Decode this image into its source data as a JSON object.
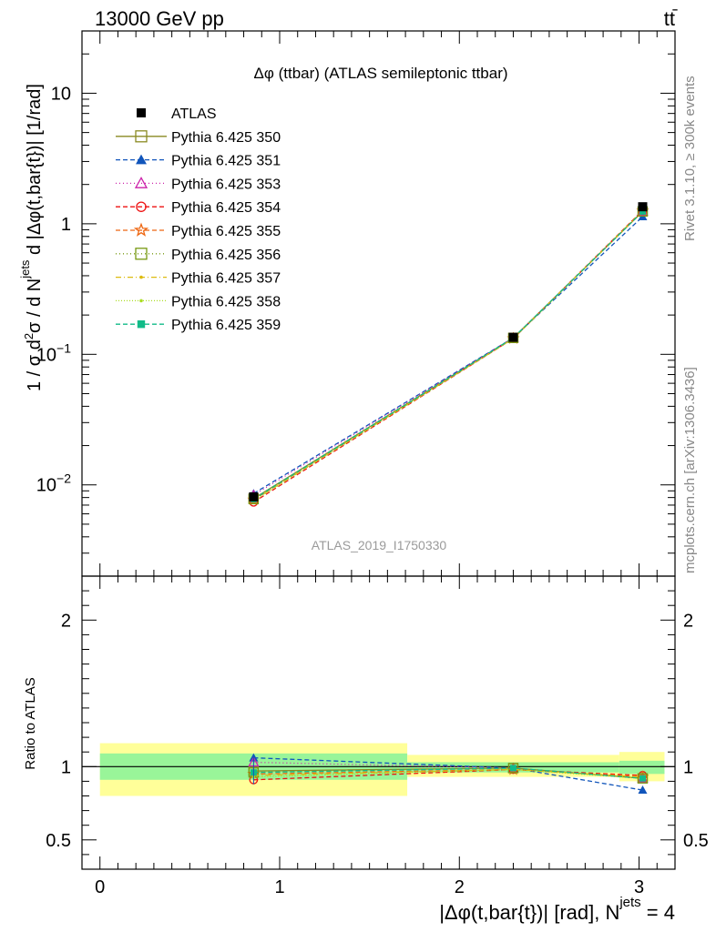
{
  "header": {
    "left": "13000 GeV pp",
    "right_main": "tt",
    "right_bar": "̄"
  },
  "side": {
    "rivet": "Rivet 3.1.10, ≥ 300k events",
    "mcplots": "mcplots.cern.ch [arXiv:1306.3436]"
  },
  "chart_data": {
    "type": "line",
    "title": "Δφ (ttbar) (ATLAS semileptonic ttbar)",
    "watermark": "ATLAS_2019_I1750330",
    "ylabel": {
      "a": "1 / σ d",
      "a_sup": "2",
      "b": "σ / d N",
      "b_sup": "jets",
      "c": " d |Δφ(t,bar{t})| [1/rad]"
    },
    "xlabel": {
      "main": "|Δφ(t,bar{t})| [rad], N",
      "sup": "jets",
      "tail": " = 4"
    },
    "ratio_ylabel": "Ratio to ATLAS",
    "xlim": [
      -0.1,
      3.2
    ],
    "ylim_log": [
      0.002,
      30
    ],
    "ratio_ylim": [
      0.3,
      2.3
    ],
    "log_y": true,
    "x_ticks": [
      0,
      1,
      2,
      3
    ],
    "x_tick_labels": [
      "0",
      "1",
      "2",
      "3"
    ],
    "y_ticks": [
      0.01,
      0.1,
      1,
      10
    ],
    "y_tick_labels": [
      {
        "base": "10",
        "exp": "−2"
      },
      {
        "base": "10",
        "exp": "−1"
      },
      {
        "base": "1",
        "exp": ""
      },
      {
        "base": "10",
        "exp": ""
      }
    ],
    "ratio_ticks": [
      0.5,
      1,
      2
    ],
    "ratio_tick_labels": [
      "0.5",
      "1",
      "2"
    ],
    "bins": [
      {
        "lo": 0.0,
        "hi": 1.71,
        "center": 0.855
      },
      {
        "lo": 1.71,
        "hi": 2.89,
        "center": 2.3
      },
      {
        "lo": 2.89,
        "hi": 3.1416,
        "center": 3.02
      }
    ],
    "data": {
      "name": "ATLAS",
      "values": [
        0.0081,
        0.135,
        1.35
      ],
      "band_inner": [
        [
          0.91,
          1.09
        ],
        [
          0.96,
          1.03
        ],
        [
          0.95,
          1.04
        ]
      ],
      "band_outer": [
        [
          0.8,
          1.16
        ],
        [
          0.93,
          1.08
        ],
        [
          0.9,
          1.1
        ]
      ]
    },
    "series": [
      {
        "name": "Pythia 6.425 350",
        "color": "#8a8a22",
        "dash": "",
        "marker": "square-open",
        "ratio": [
          0.97,
          0.99,
          0.92
        ]
      },
      {
        "name": "Pythia 6.425 351",
        "color": "#1155bb",
        "dash": "5,3",
        "marker": "triangle-filled",
        "ratio": [
          1.06,
          0.99,
          0.84
        ]
      },
      {
        "name": "Pythia 6.425 353",
        "color": "#cc22aa",
        "dash": "1,3",
        "marker": "triangle-open",
        "ratio": [
          1.03,
          0.99,
          0.92
        ]
      },
      {
        "name": "Pythia 6.425 354",
        "color": "#ee1111",
        "dash": "5,3",
        "marker": "circle-open",
        "ratio": [
          0.91,
          0.98,
          0.94
        ]
      },
      {
        "name": "Pythia 6.425 355",
        "color": "#ee6611",
        "dash": "5,3",
        "marker": "star-open",
        "ratio": [
          0.95,
          0.98,
          0.93
        ]
      },
      {
        "name": "Pythia 6.425 356",
        "color": "#779911",
        "dash": "1,3",
        "marker": "square-open",
        "ratio": [
          0.96,
          0.99,
          0.92
        ]
      },
      {
        "name": "Pythia 6.425 357",
        "color": "#ddbb11",
        "dash": "6,3,1,3",
        "marker": "dot",
        "ratio": [
          0.94,
          0.98,
          0.93
        ]
      },
      {
        "name": "Pythia 6.425 358",
        "color": "#aadd22",
        "dash": "1,2",
        "marker": "dot",
        "ratio": [
          0.93,
          0.98,
          0.92
        ]
      },
      {
        "name": "Pythia 6.425 359",
        "color": "#11bb88",
        "dash": "5,3",
        "marker": "square-filled",
        "ratio": [
          0.96,
          0.99,
          0.92
        ]
      }
    ]
  }
}
